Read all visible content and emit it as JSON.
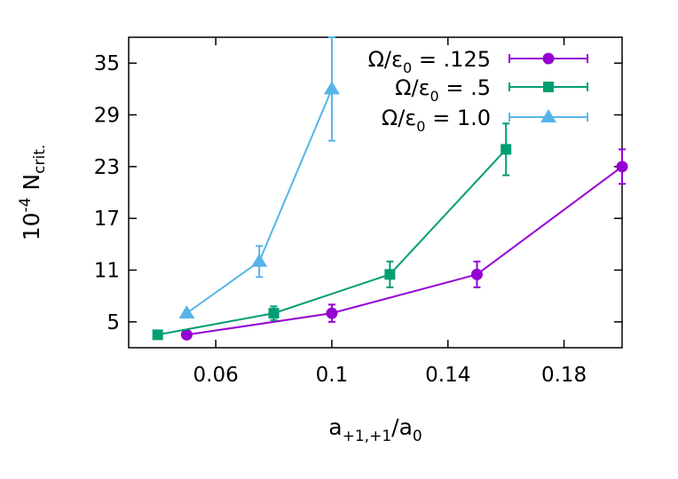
{
  "chart_data": {
    "type": "line",
    "xlabel": {
      "base": "a",
      "sub": "+1,+1",
      "tail": "/a",
      "sub2": "0"
    },
    "ylabel": {
      "pre": "10",
      "sup": "-4",
      "mid": " N",
      "sub": "crit."
    },
    "xlim": [
      0.03,
      0.2
    ],
    "ylim": [
      2,
      38
    ],
    "xticks": [
      {
        "value": 0.06,
        "label": "0.06"
      },
      {
        "value": 0.1,
        "label": "0.1"
      },
      {
        "value": 0.14,
        "label": "0.14"
      },
      {
        "value": 0.18,
        "label": "0.18"
      }
    ],
    "yticks": [
      {
        "value": 5,
        "label": "5"
      },
      {
        "value": 11,
        "label": "11"
      },
      {
        "value": 17,
        "label": "17"
      },
      {
        "value": 23,
        "label": "23"
      },
      {
        "value": 29,
        "label": "29"
      },
      {
        "value": 35,
        "label": "35"
      }
    ],
    "legend_position": "top-right",
    "grid": false,
    "series": [
      {
        "name": "Ω/ε0 = .125",
        "label": {
          "a": "Ω/ε",
          "sub": "0",
          "b": " = .125"
        },
        "color": "#9400d3",
        "marker": "circle",
        "points": [
          {
            "x": 0.05,
            "y": 3.5,
            "err": 0
          },
          {
            "x": 0.1,
            "y": 6.0,
            "err": 1.0
          },
          {
            "x": 0.15,
            "y": 10.5,
            "err": 1.5
          },
          {
            "x": 0.2,
            "y": 23.0,
            "err": 2.0
          }
        ]
      },
      {
        "name": "Ω/ε0 = .5",
        "label": {
          "a": "Ω/ε",
          "sub": "0",
          "b": " = .5"
        },
        "color": "#009e73",
        "marker": "square",
        "points": [
          {
            "x": 0.04,
            "y": 3.5,
            "err": 0
          },
          {
            "x": 0.08,
            "y": 6.0,
            "err": 0.8
          },
          {
            "x": 0.12,
            "y": 10.5,
            "err": 1.5
          },
          {
            "x": 0.16,
            "y": 25.0,
            "err": 3.0
          }
        ]
      },
      {
        "name": "Ω/ε0 = 1.0",
        "label": {
          "a": "Ω/ε",
          "sub": "0",
          "b": " = 1.0"
        },
        "color": "#56b4e9",
        "marker": "triangle",
        "points": [
          {
            "x": 0.05,
            "y": 6.0,
            "err": 0
          },
          {
            "x": 0.075,
            "y": 12.0,
            "err": 1.8
          },
          {
            "x": 0.1,
            "y": 32.0,
            "err": 6.0
          }
        ]
      }
    ]
  }
}
